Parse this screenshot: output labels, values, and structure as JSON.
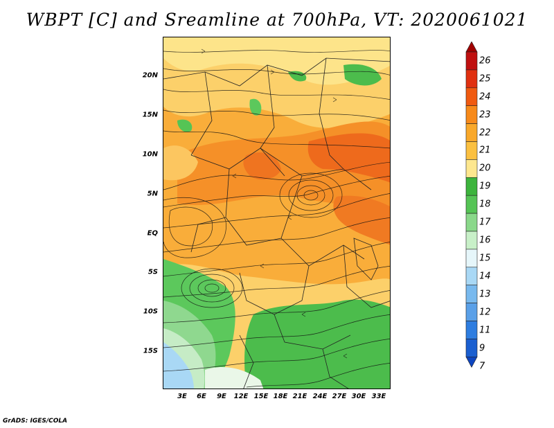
{
  "title": "WBPT [C] and Sreamline at 700hPa, VT: 2020061021",
  "footer": "GrADS: IGES/COLA",
  "map": {
    "latitude_labels": [
      "20N",
      "15N",
      "10N",
      "5N",
      "EQ",
      "5S",
      "10S",
      "15S"
    ],
    "longitude_labels": [
      "3E",
      "6E",
      "9E",
      "12E",
      "15E",
      "18E",
      "21E",
      "24E",
      "27E",
      "30E",
      "33E"
    ]
  },
  "colorbar": {
    "levels": [
      "26",
      "25",
      "24",
      "23",
      "22",
      "21",
      "20",
      "19",
      "18",
      "17",
      "16",
      "15",
      "14",
      "13",
      "12",
      "11",
      "9",
      "7"
    ],
    "colors": [
      "#a00000",
      "#c01010",
      "#e03010",
      "#f05a10",
      "#f78a1a",
      "#f9a82a",
      "#fbc040",
      "#fde78e",
      "#3cb43c",
      "#55c455",
      "#8ad88a",
      "#c8f0c8",
      "#e6f6fa",
      "#a9d8f5",
      "#78b9ee",
      "#5aa0e8",
      "#2e7de0",
      "#1a5fd0",
      "#0d45c0"
    ]
  }
}
